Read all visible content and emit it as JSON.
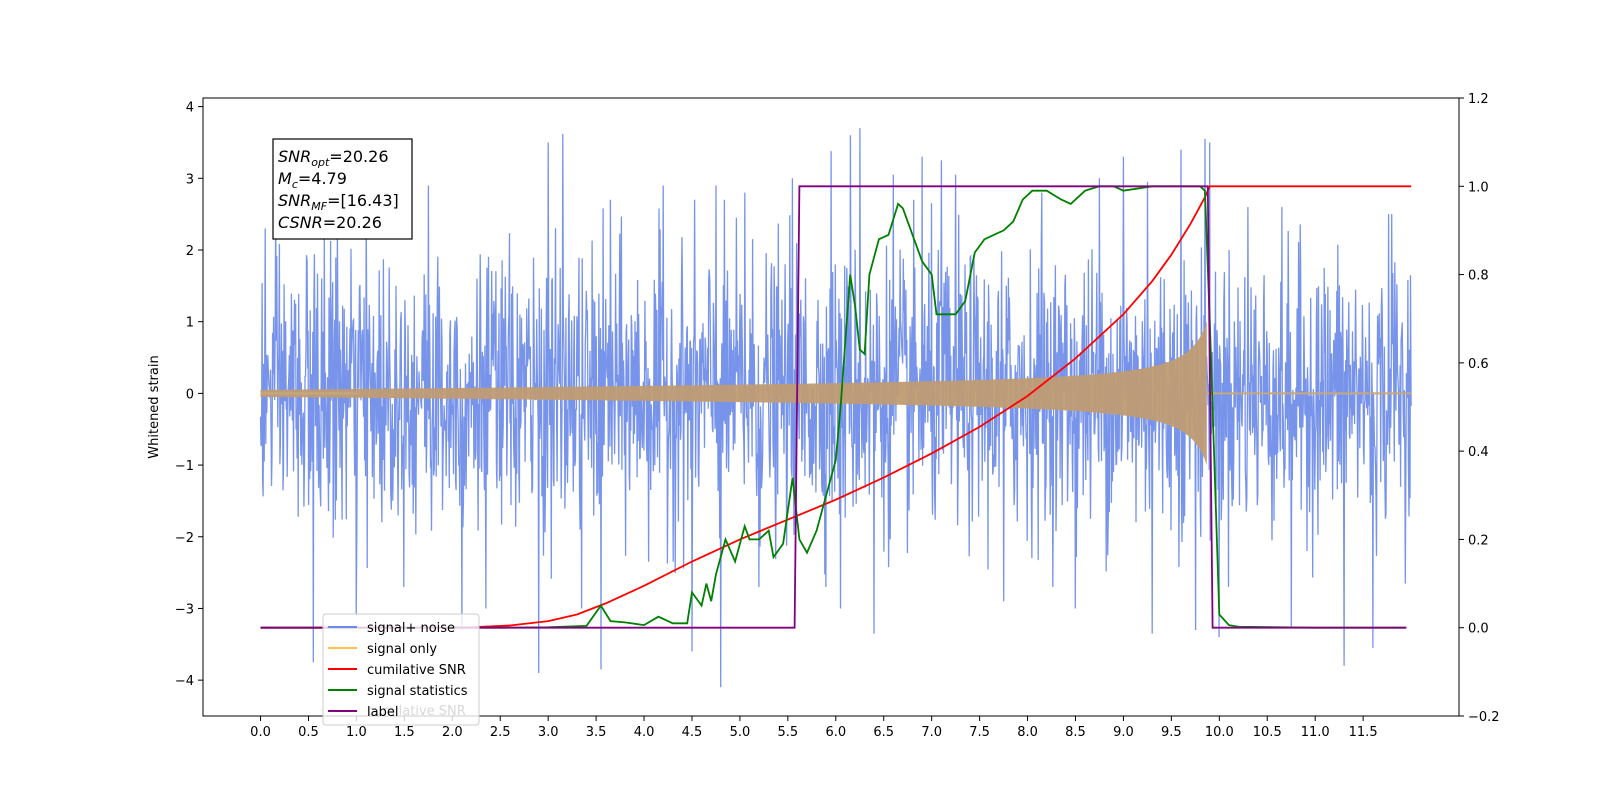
{
  "chart_data": {
    "type": "line",
    "ylabel": "Whitened strain",
    "xlim": [
      -0.6,
      12.5
    ],
    "ylim": [
      -4.5,
      4.12
    ],
    "y2lim": [
      -0.2,
      1.2
    ],
    "x_ticks": [
      "0.0",
      "0.5",
      "1.0",
      "1.5",
      "2.0",
      "2.5",
      "3.0",
      "3.5",
      "4.0",
      "4.5",
      "5.0",
      "5.5",
      "6.0",
      "6.5",
      "7.0",
      "7.5",
      "8.0",
      "8.5",
      "9.0",
      "9.5",
      "10.0",
      "10.5",
      "11.0",
      "11.5"
    ],
    "y_ticks": [
      4,
      3,
      2,
      1,
      0,
      -1,
      -2,
      -3,
      -4
    ],
    "y2_ticks": [
      1.2,
      1.0,
      0.8,
      0.6,
      0.4,
      0.2,
      0.0,
      -0.2
    ],
    "annotation": [
      {
        "base": "SNR",
        "sub": "opt",
        "value": "=20.26"
      },
      {
        "base": "M",
        "sub": "c",
        "value": "=4.79"
      },
      {
        "base": "SNR",
        "sub": "MF",
        "value": "=[16.43]"
      },
      {
        "base": "CSNR",
        "sub": "",
        "value": "=20.26"
      }
    ],
    "legend": {
      "placement": "lower-left",
      "entries": [
        {
          "label": "signal+ noise",
          "color": "#6b8be8"
        },
        {
          "label": "signal only",
          "color": "#ffc04d"
        },
        {
          "label": "cumilative SNR",
          "color": "#ff0000"
        },
        {
          "label": "signal statistics",
          "color": "#008000"
        },
        {
          "label": "label",
          "color": "#800080"
        }
      ],
      "ghost_text": "cumilative SNR"
    },
    "series": [
      {
        "name": "signal+ noise",
        "axis": "left",
        "color": "#6b8be8",
        "sigma": 1.0,
        "x_range": [
          0,
          12.0
        ],
        "peaks": [
          [
            0.05,
            2.3
          ],
          [
            0.55,
            -3.75
          ],
          [
            0.8,
            2.3
          ],
          [
            1.0,
            -3.1
          ],
          [
            1.75,
            2.9
          ],
          [
            2.1,
            -3.3
          ],
          [
            2.35,
            -3.0
          ],
          [
            2.9,
            -3.9
          ],
          [
            3.0,
            3.5
          ],
          [
            3.15,
            3.62
          ],
          [
            3.35,
            -3.0
          ],
          [
            3.55,
            -3.85
          ],
          [
            3.65,
            2.7
          ],
          [
            4.2,
            2.9
          ],
          [
            4.5,
            -3.6
          ],
          [
            4.75,
            2.9
          ],
          [
            4.8,
            -4.1
          ],
          [
            5.05,
            2.8
          ],
          [
            5.2,
            -2.7
          ],
          [
            5.55,
            3.0
          ],
          [
            5.95,
            3.38
          ],
          [
            6.05,
            -3.0
          ],
          [
            6.15,
            3.6
          ],
          [
            6.25,
            3.7
          ],
          [
            6.4,
            -3.35
          ],
          [
            6.6,
            3.05
          ],
          [
            6.9,
            3.3
          ],
          [
            7.1,
            3.25
          ],
          [
            7.25,
            3.05
          ],
          [
            7.75,
            -2.9
          ],
          [
            8.15,
            2.8
          ],
          [
            8.5,
            -3.0
          ],
          [
            8.75,
            3.0
          ],
          [
            9.0,
            3.3
          ],
          [
            9.25,
            2.95
          ],
          [
            9.3,
            -3.35
          ],
          [
            9.6,
            3.4
          ],
          [
            9.75,
            -3.3
          ],
          [
            9.85,
            3.55
          ],
          [
            9.9,
            3.5
          ],
          [
            10.0,
            -3.4
          ],
          [
            10.3,
            2.6
          ],
          [
            10.75,
            -3.25
          ],
          [
            11.3,
            -3.8
          ],
          [
            11.6,
            -3.55
          ],
          [
            11.8,
            2.5
          ]
        ]
      },
      {
        "name": "signal only",
        "axis": "left",
        "color": "#ffc04d",
        "x_range": [
          0,
          12.0
        ],
        "chirp_start": 0.0,
        "chirp_end": 9.87,
        "amplitude_start": 0.02,
        "amplitude_end": 1.2
      },
      {
        "name": "cumilative SNR",
        "axis": "right",
        "color": "#ff0000",
        "x": [
          0,
          1.5,
          2.2,
          2.6,
          3.0,
          3.3,
          3.6,
          4.0,
          4.5,
          5.0,
          5.5,
          6.0,
          6.5,
          7.0,
          7.5,
          8.0,
          8.5,
          9.0,
          9.3,
          9.5,
          9.7,
          9.85,
          9.9,
          12.0
        ],
        "y": [
          0,
          0,
          0.001,
          0.005,
          0.015,
          0.03,
          0.055,
          0.095,
          0.15,
          0.2,
          0.245,
          0.29,
          0.34,
          0.395,
          0.455,
          0.525,
          0.61,
          0.71,
          0.785,
          0.845,
          0.915,
          0.975,
          1.0,
          1.0
        ]
      },
      {
        "name": "signal statistics",
        "axis": "right",
        "color": "#008000",
        "x": [
          0,
          2.5,
          3.0,
          3.4,
          3.55,
          3.65,
          3.8,
          4.0,
          4.15,
          4.3,
          4.45,
          4.5,
          4.6,
          4.65,
          4.7,
          4.75,
          4.85,
          4.95,
          5.05,
          5.1,
          5.2,
          5.3,
          5.35,
          5.45,
          5.55,
          5.58,
          5.62,
          5.7,
          5.8,
          5.9,
          6.0,
          6.05,
          6.15,
          6.2,
          6.25,
          6.3,
          6.35,
          6.45,
          6.55,
          6.65,
          6.7,
          6.8,
          6.9,
          7.0,
          7.05,
          7.15,
          7.25,
          7.35,
          7.45,
          7.55,
          7.65,
          7.75,
          7.85,
          7.95,
          8.05,
          8.2,
          8.35,
          8.45,
          8.6,
          8.75,
          8.9,
          9.0,
          9.3,
          9.6,
          9.8,
          9.85,
          9.9,
          10.0,
          10.1,
          10.2,
          11.0,
          11.95
        ],
        "y": [
          0,
          0,
          0.001,
          0.004,
          0.05,
          0.015,
          0.012,
          0.006,
          0.025,
          0.01,
          0.01,
          0.08,
          0.05,
          0.1,
          0.06,
          0.12,
          0.2,
          0.15,
          0.23,
          0.2,
          0.2,
          0.22,
          0.16,
          0.19,
          0.34,
          0.28,
          0.2,
          0.17,
          0.22,
          0.3,
          0.38,
          0.5,
          0.8,
          0.73,
          0.63,
          0.62,
          0.8,
          0.88,
          0.89,
          0.96,
          0.95,
          0.89,
          0.83,
          0.8,
          0.71,
          0.71,
          0.71,
          0.74,
          0.85,
          0.88,
          0.89,
          0.9,
          0.92,
          0.97,
          0.99,
          0.99,
          0.97,
          0.96,
          0.99,
          1.0,
          1.0,
          0.99,
          1.0,
          1.0,
          1.0,
          0.99,
          0.7,
          0.03,
          0.006,
          0.002,
          0.0,
          0.0
        ]
      },
      {
        "name": "label",
        "axis": "right",
        "color": "#800080",
        "x": [
          0,
          5.57,
          5.62,
          9.88,
          9.93,
          11.95
        ],
        "y": [
          0,
          0,
          1,
          1,
          0,
          0
        ]
      }
    ]
  }
}
